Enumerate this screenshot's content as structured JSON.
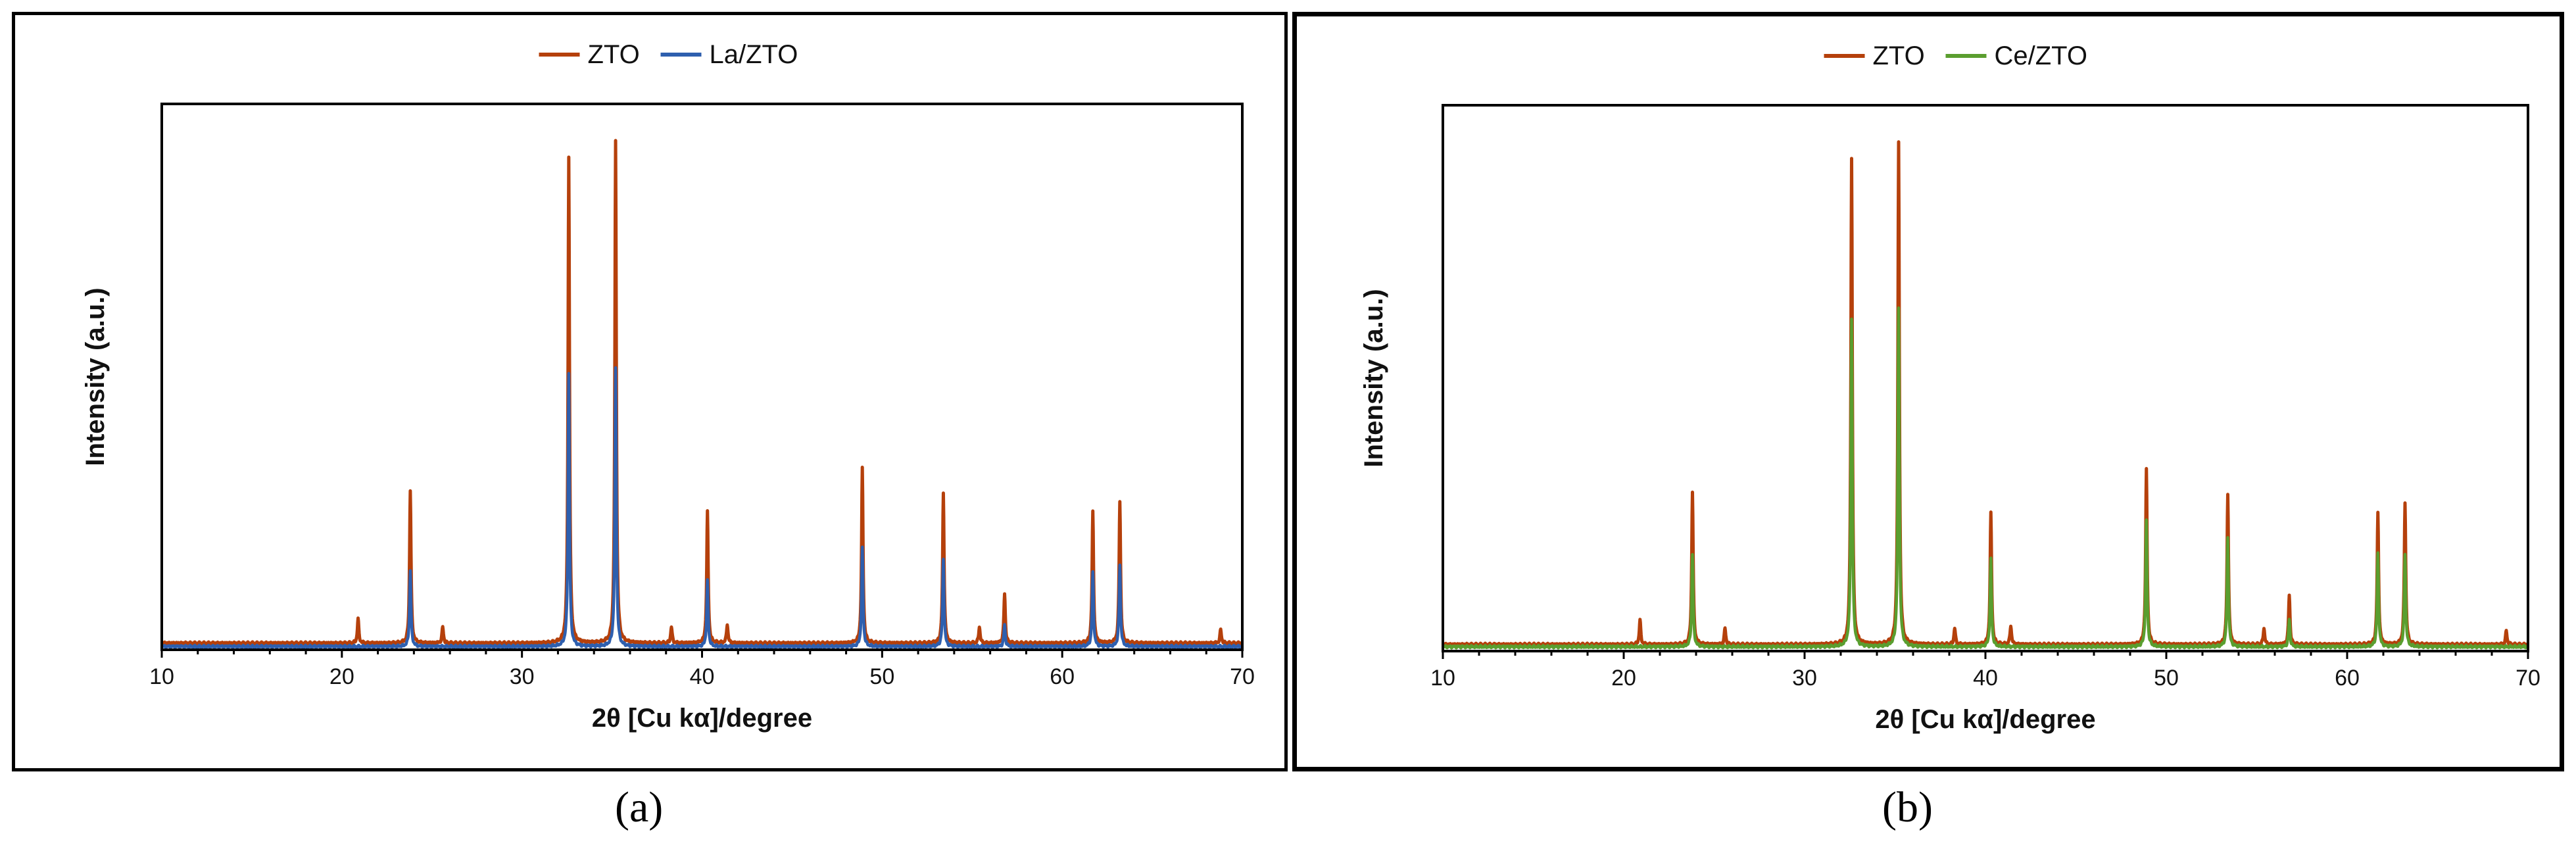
{
  "chart_data": [
    {
      "type": "line",
      "panel_label": "(a)",
      "xlabel": "2θ [Cu kα]/degree",
      "ylabel": "Intensity (a.u.)",
      "xlim": [
        10,
        70
      ],
      "ylim": [
        0,
        100
      ],
      "xticks": [
        10,
        20,
        30,
        40,
        50,
        60,
        70
      ],
      "legend": "top-center",
      "grid": false,
      "series": [
        {
          "name": "ZTO",
          "color": "#b5400b",
          "baseline": 1.2,
          "peaks": [
            [
              20.9,
              4.5
            ],
            [
              23.8,
              28
            ],
            [
              25.6,
              3
            ],
            [
              32.6,
              89
            ],
            [
              35.2,
              92
            ],
            [
              38.3,
              3
            ],
            [
              40.3,
              24
            ],
            [
              41.4,
              3.5
            ],
            [
              48.9,
              32
            ],
            [
              53.4,
              27.5
            ],
            [
              55.4,
              3
            ],
            [
              56.8,
              9
            ],
            [
              61.7,
              24
            ],
            [
              63.2,
              26
            ],
            [
              68.8,
              2.5
            ]
          ]
        },
        {
          "name": "La/ZTO",
          "color": "#2e5fae",
          "baseline": 0.6,
          "peaks": [
            [
              23.8,
              14
            ],
            [
              32.6,
              50
            ],
            [
              35.2,
              51
            ],
            [
              40.3,
              12
            ],
            [
              48.9,
              18
            ],
            [
              53.4,
              16
            ],
            [
              56.8,
              4
            ],
            [
              61.7,
              13.5
            ],
            [
              63.2,
              15
            ]
          ]
        }
      ]
    },
    {
      "type": "line",
      "panel_label": "(b)",
      "xlabel": "2θ [Cu kα]/degree",
      "ylabel": "Intensity (a.u.)",
      "xlim": [
        10,
        70
      ],
      "ylim": [
        0,
        100
      ],
      "xticks": [
        10,
        20,
        30,
        40,
        50,
        60,
        70
      ],
      "legend": "top-center",
      "grid": false,
      "series": [
        {
          "name": "ZTO",
          "color": "#b5400b",
          "baseline": 1.2,
          "peaks": [
            [
              20.9,
              4.5
            ],
            [
              23.8,
              28
            ],
            [
              25.6,
              3
            ],
            [
              32.6,
              89
            ],
            [
              35.2,
              92
            ],
            [
              38.3,
              3
            ],
            [
              40.3,
              24
            ],
            [
              41.4,
              3.5
            ],
            [
              48.9,
              32
            ],
            [
              53.4,
              27.5
            ],
            [
              55.4,
              3
            ],
            [
              56.8,
              9
            ],
            [
              61.7,
              24
            ],
            [
              63.2,
              26
            ],
            [
              68.8,
              2.5
            ]
          ]
        },
        {
          "name": "Ce/ZTO",
          "color": "#5a9e2f",
          "baseline": 0.8,
          "peaks": [
            [
              23.8,
              17
            ],
            [
              32.6,
              60
            ],
            [
              35.2,
              62
            ],
            [
              40.3,
              16
            ],
            [
              48.9,
              23
            ],
            [
              53.4,
              20
            ],
            [
              56.8,
              5
            ],
            [
              61.7,
              17
            ],
            [
              63.2,
              17
            ]
          ]
        }
      ]
    }
  ]
}
